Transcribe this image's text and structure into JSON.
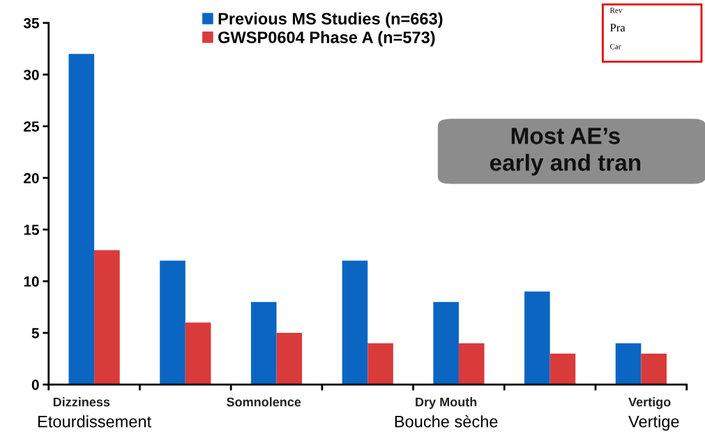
{
  "chart_data": {
    "type": "bar",
    "categories": [
      "Dizziness\nEtourdissement",
      null,
      "Somnolence",
      null,
      "Dry Mouth\nBouche sèche",
      null,
      "Vertigo\nVertige"
    ],
    "series": [
      {
        "name": "Previous MS Studies (n=663)",
        "color": "#0a66c2",
        "values": [
          32,
          12,
          8,
          12,
          8,
          9,
          4
        ]
      },
      {
        "name": "GWSP0604 Phase A (n=573)",
        "color": "#d93a3a",
        "values": [
          13,
          6,
          5,
          4,
          4,
          3,
          3
        ]
      }
    ],
    "ylim": [
      0,
      35
    ],
    "yticks": [
      0,
      5,
      10,
      15,
      20,
      25,
      30,
      35
    ],
    "grid": false,
    "legend": "top",
    "annotations": [
      "Most AE’s early and tran",
      "Rev",
      "Pra",
      "Car"
    ]
  }
}
